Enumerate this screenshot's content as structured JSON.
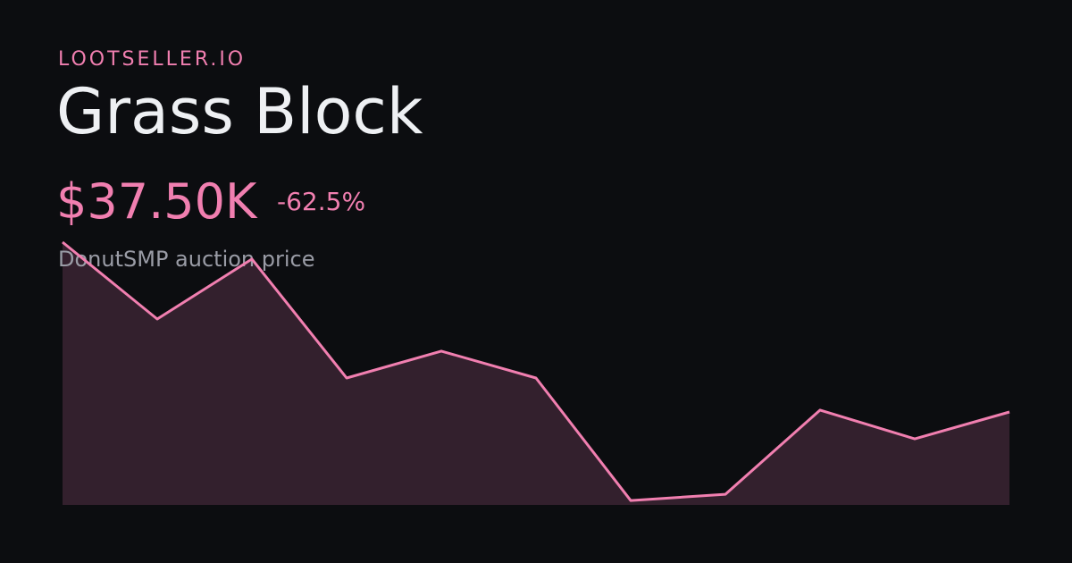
{
  "brand": "LOOTSELLER.IO",
  "title": "Grass Block",
  "price": "$37.50K",
  "change": "-62.5%",
  "subtitle": "DonutSMP auction price",
  "chart_data": {
    "type": "area",
    "values": [
      100000,
      71700,
      93800,
      50000,
      59900,
      50000,
      4900,
      7200,
      38200,
      27600,
      37500
    ],
    "ylim": [
      3300,
      100000
    ],
    "color": "#f17fb0",
    "fill": "#33202d"
  }
}
